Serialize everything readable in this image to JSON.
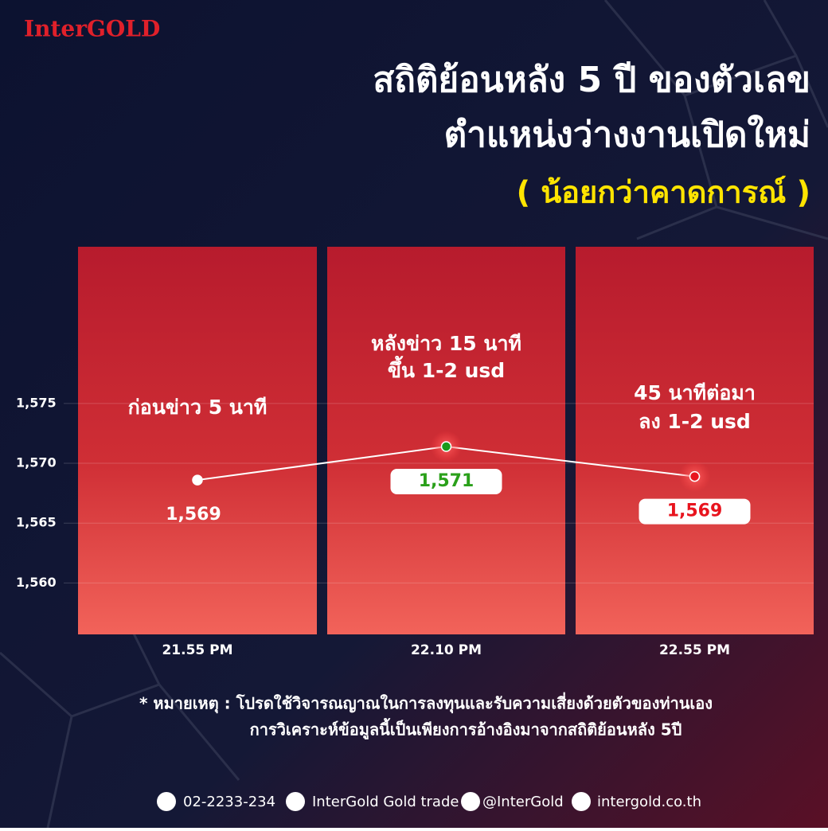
{
  "logo": "InterGOLD",
  "chart_data": {
    "type": "line",
    "title": [
      "สถิติย้อนหลัง 5 ปี ของตัวเลข",
      "ตำแหน่งว่างงานเปิดใหม่"
    ],
    "subtitle": "( น้อยกว่าคาดการณ์ )",
    "categories": [
      "21.55 PM",
      "22.10 PM",
      "22.55 PM"
    ],
    "annotations": [
      [
        "ก่อนข่าว 5 นาที"
      ],
      [
        "หลังข่าว 15 นาที",
        "ขึ้น 1-2 usd"
      ],
      [
        "45 นาทีต่อมา",
        "ลง 1-2 usd"
      ]
    ],
    "values": [
      1568.6,
      1571.4,
      1568.9
    ],
    "value_labels": [
      "1,569",
      "1,571",
      "1,569"
    ],
    "color": "#ffffff",
    "point_colors": [
      "#ffffff",
      "#1a9a1a",
      "#e8141e"
    ],
    "label_colors": [
      "#ffffff",
      "#2aa01a",
      "#e8141e"
    ],
    "label_boxed": [
      false,
      true,
      true
    ],
    "ylim": [
      1555.7,
      1588.1
    ],
    "yticks": [
      {
        "value": 1560,
        "label": "1,560"
      },
      {
        "value": 1565,
        "label": "1,565"
      },
      {
        "value": 1570,
        "label": "1,570"
      },
      {
        "value": 1575,
        "label": "1,575"
      }
    ],
    "grid": true
  },
  "note": [
    "* หมายเหตุ : โปรดใช้วิจารณญาณในการลงทุนและรับความเสี่ยงด้วยตัวของท่านเอง",
    "การวิเคราะห์ข้อมูลนี้เป็นเพียงการอ้างอิงมาจากสถิติย้อนหลัง 5ปี"
  ],
  "footer": [
    "02-2233-234",
    "InterGold Gold trade",
    "@InterGold",
    "intergold.co.th"
  ]
}
